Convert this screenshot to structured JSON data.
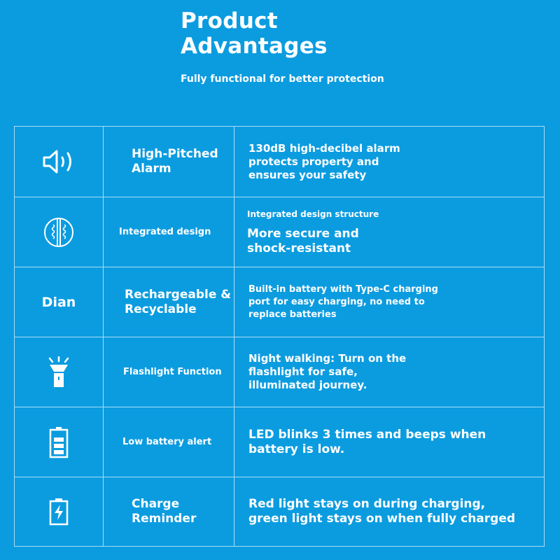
{
  "header": {
    "title_line1": "Product",
    "title_line2": "Advantages",
    "subtitle": "Fully functional for better protection"
  },
  "colors": {
    "background": "#0b9ce0",
    "grid": "#a9dcf6",
    "text": "#ffffff"
  },
  "features": [
    {
      "icon": "speaker-icon",
      "name": "High-Pitched Alarm",
      "description": "130dB high-decibel alarm protects property and ensures your safety"
    },
    {
      "icon": "shell-structure-icon",
      "name": "Integrated design",
      "description_title": "Integrated design structure",
      "description": "More secure and shock-resistant"
    },
    {
      "icon_text": "Dian",
      "name": "Rechargeable & Recyclable",
      "description": "Built-in battery with Type-C charging port for easy charging, no need to replace batteries"
    },
    {
      "icon": "flashlight-icon",
      "name": "Flashlight Function",
      "description": "Night walking: Turn on the flashlight for safe, illuminated journey."
    },
    {
      "icon": "battery-icon",
      "name": "Low battery alert",
      "description": "LED blinks 3 times and beeps when battery is low."
    },
    {
      "icon": "battery-charging-icon",
      "name": "Charge Reminder",
      "description": "Red light stays on during charging, green light stays on when fully charged"
    }
  ]
}
